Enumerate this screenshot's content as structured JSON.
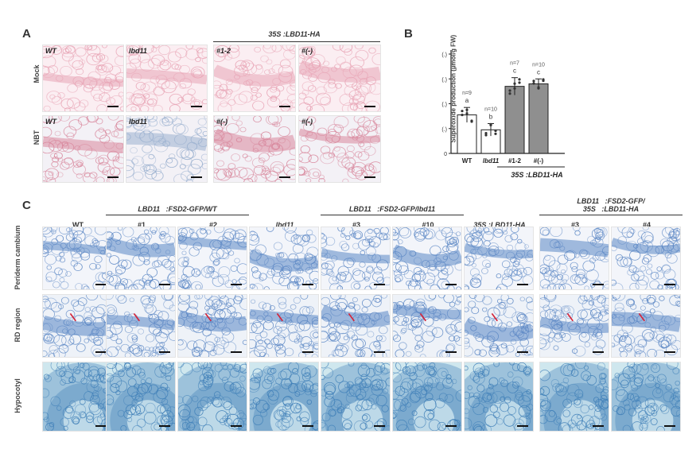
{
  "panels": {
    "a": "A",
    "b": "B",
    "c": "C"
  },
  "panel_a": {
    "group_header": "35S   :LBD11-HA",
    "row_labels": [
      "Mock",
      "NBT"
    ],
    "columns": [
      "WT",
      "lbd11",
      "#1-2",
      "#(-)"
    ],
    "row2_columns": [
      "WT",
      "lbd11",
      "#(-)",
      "#(-)"
    ]
  },
  "panel_c": {
    "row_labels": [
      "Periderm cambium",
      "RD region",
      "Hypocotyl"
    ],
    "columns": [
      "WT",
      "#1",
      "#2",
      "lbd11",
      "#3",
      "#10",
      "35S   :LBD11-HA",
      "#3",
      "#4"
    ],
    "groups": [
      "LBD11   :FSD2-GFP/WT",
      "LBD11   :FSD2-GFP/lbd11",
      "LBD11   :FSD2-GFP/\n35S   :LBD11-HA"
    ]
  },
  "colors": {
    "pink_stain": "#e8a5b6",
    "blue_stain": "#8fb0d6",
    "bar_gray": "#8f8f8f"
  },
  "chart_data": {
    "type": "bar",
    "categories": [
      "WT",
      "lbd11",
      "#1-2",
      "#(-)"
    ],
    "values": [
      1.55,
      0.95,
      2.7,
      2.8
    ],
    "errors": [
      0.3,
      0.25,
      0.35,
      0.2
    ],
    "letters": [
      "a",
      "b",
      "c",
      "c"
    ],
    "n_labels": [
      "n=9",
      "n=10",
      "n=7",
      "n=10"
    ],
    "ylabel": "Superoxide production (µmol/g FW)",
    "ytick_labels": [
      "0",
      "(.)",
      "(.)",
      "(.)",
      "(.)"
    ],
    "ylim": [
      0,
      4
    ],
    "group_label": "35S   :LBD11-HA",
    "bar_colors": [
      "#ffffff",
      "#ffffff",
      "#8f8f8f",
      "#8f8f8f"
    ]
  }
}
